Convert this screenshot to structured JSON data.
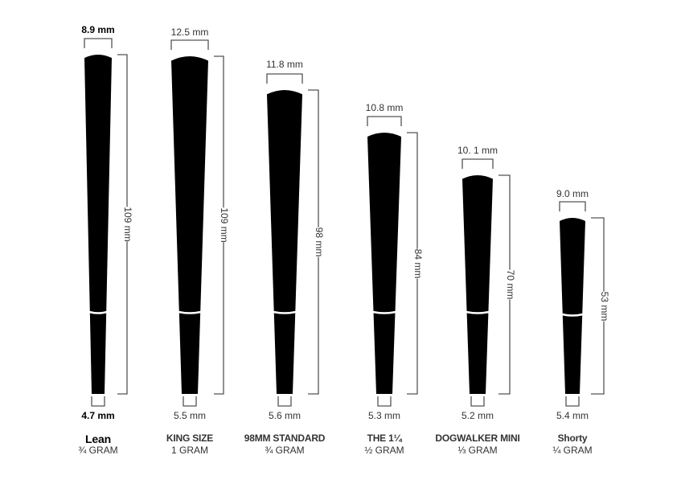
{
  "colors": {
    "cone": "#000000",
    "band": "#ffffff",
    "bracket": "#555555"
  },
  "cones": [
    {
      "name": "Lean",
      "weight": "¾ GRAM",
      "top_diameter": "8.9 mm",
      "length": "109 mm",
      "tip_diameter": "4.7 mm"
    },
    {
      "name": "KING SIZE",
      "weight": "1 GRAM",
      "top_diameter": "12.5 mm",
      "length": "109 mm",
      "tip_diameter": "5.5 mm"
    },
    {
      "name": "98MM STANDARD",
      "weight": "¾ GRAM",
      "top_diameter": "11.8 mm",
      "length": "98 mm",
      "tip_diameter": "5.6 mm"
    },
    {
      "name": "THE 1¼",
      "weight": "½ GRAM",
      "top_diameter": "10.8 mm",
      "length": "84 mm",
      "tip_diameter": "5.3 mm"
    },
    {
      "name": "DOGWALKER MINI",
      "weight": "⅓ GRAM",
      "top_diameter": "10. 1 mm",
      "length": "70 mm",
      "tip_diameter": "5.2 mm"
    },
    {
      "name": "Shorty",
      "weight": "¼ GRAM",
      "top_diameter": "9.0 mm",
      "length": "53 mm",
      "tip_diameter": "5.4 mm"
    }
  ]
}
